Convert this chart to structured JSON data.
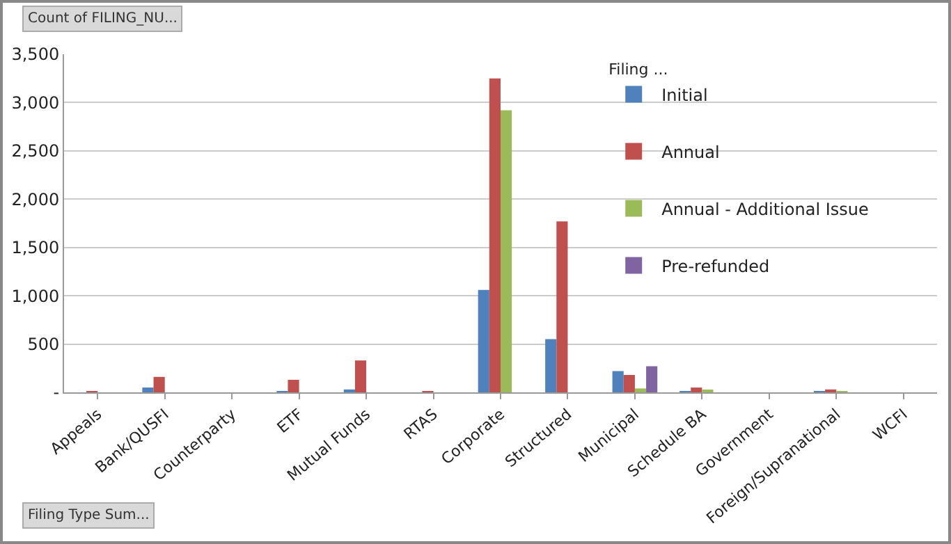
{
  "chart_data": {
    "type": "bar",
    "legend_title": "Filing ...",
    "annotations": [
      "Count of FILING_NU...",
      "Filing Type Sum..."
    ],
    "categories": [
      "Appeals",
      "Bank/QUSFI",
      "Counterparty",
      "ETF",
      "Mutual Funds",
      "RTAS",
      "Corporate",
      "Structured",
      "Municipal",
      "Schedule BA",
      "Government",
      "Foreign/Supranational",
      "WCFI"
    ],
    "series": [
      {
        "name": "Initial",
        "color": "#4f81bd",
        "values": [
          null,
          50,
          null,
          10,
          30,
          null,
          1060,
          550,
          220,
          10,
          null,
          10,
          null
        ]
      },
      {
        "name": "Annual",
        "color": "#c0504d",
        "values": [
          10,
          160,
          null,
          130,
          330,
          10,
          3250,
          1770,
          180,
          50,
          null,
          30,
          null
        ]
      },
      {
        "name": "Annual - Additional Issue",
        "color": "#9bbb59",
        "values": [
          null,
          null,
          null,
          null,
          null,
          null,
          2920,
          null,
          40,
          20,
          null,
          10,
          null
        ]
      },
      {
        "name": "Pre-refunded",
        "color": "#8064a2",
        "values": [
          null,
          null,
          null,
          null,
          null,
          null,
          null,
          null,
          270,
          null,
          null,
          null,
          null
        ]
      }
    ],
    "ylim": [
      0,
      3500
    ],
    "yticks": [
      {
        "value": 0,
        "label": "-"
      },
      500,
      {
        "value": 1000,
        "label": "1,000"
      },
      {
        "value": 1500,
        "label": "1,500"
      },
      {
        "value": 2000,
        "label": "2,000"
      },
      {
        "value": 2500,
        "label": "2,500"
      },
      {
        "value": 3000,
        "label": "3,000"
      },
      {
        "value": 3500,
        "label": "3,500"
      }
    ],
    "grid": "y",
    "legend": "top right"
  }
}
